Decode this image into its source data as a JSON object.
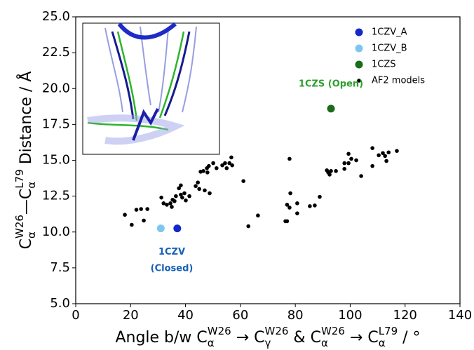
{
  "chart_data": {
    "type": "scatter",
    "x_label": [
      {
        "text": "Angle b/w "
      },
      {
        "text": "C",
        "sub": "α",
        "sup": "W26"
      },
      {
        "text": " → "
      },
      {
        "text": "C",
        "sub": "γ",
        "sup": "W26"
      },
      {
        "text": " & "
      },
      {
        "text": "C",
        "sub": "α",
        "sup": "W26"
      },
      {
        "text": " → "
      },
      {
        "text": "C",
        "sub": "α",
        "sup": "L79"
      },
      {
        "text": " / °"
      }
    ],
    "y_label": [
      {
        "text": "C",
        "sub": "α",
        "sup": "W26"
      },
      {
        "text": "—"
      },
      {
        "text": "C",
        "sub": "α",
        "sup": "L79"
      },
      {
        "text": " Distance / Å"
      }
    ],
    "xlim": [
      0,
      140
    ],
    "xticks": [
      0,
      20,
      40,
      60,
      80,
      100,
      120,
      140
    ],
    "ylim": [
      5,
      25
    ],
    "yticks": [
      {
        "value": 5,
        "label": "5.0"
      },
      {
        "value": 7.5,
        "label": "7.5"
      },
      {
        "value": 10,
        "label": "10.0"
      },
      {
        "value": 12.5,
        "label": "12.5"
      },
      {
        "value": 15,
        "label": "15.0"
      },
      {
        "value": 17.5,
        "label": "17.5"
      },
      {
        "value": 20,
        "label": "20.0"
      },
      {
        "value": 22.5,
        "label": "22.5"
      },
      {
        "value": 25,
        "label": "25.0"
      }
    ],
    "legend": "upper right",
    "series": [
      {
        "name": "1CZV_A",
        "color": "#1428c8",
        "marker_size": 5.5,
        "x": [
          37
        ],
        "values": [
          10.25
        ]
      },
      {
        "name": "1CZV_B",
        "color": "#7fc6ee",
        "marker_size": 5.5,
        "x": [
          31
        ],
        "values": [
          10.25
        ]
      },
      {
        "name": "1CZS",
        "color": "#1a6b1a",
        "marker_size": 5.5,
        "x": [
          93
        ],
        "values": [
          18.6
        ]
      },
      {
        "name": "AF2 models",
        "color": "#000000",
        "marker_size": 2.8,
        "x": [
          17.9,
          20.4,
          22.1,
          23.8,
          24.8,
          26.1,
          31.2,
          32.0,
          33.2,
          34.5,
          35.0,
          35.3,
          36.0,
          36.5,
          37.6,
          38.3,
          38.3,
          38.8,
          39.6,
          40.1,
          41.4,
          43.7,
          44.5,
          45.0,
          45.5,
          46.5,
          47.0,
          47.8,
          48.0,
          48.5,
          48.8,
          50.1,
          51.3,
          53.4,
          54.4,
          55.0,
          56.0,
          56.7,
          57.0,
          61.1,
          62.9,
          66.4,
          76.4,
          77.0,
          77.0,
          77.9,
          77.9,
          78.2,
          80.7,
          80.7,
          85.3,
          87.1,
          88.9,
          91.5,
          92.0,
          92.5,
          93.0,
          94.8,
          97.9,
          97.9,
          99.4,
          99.4,
          100.4,
          102.2,
          104.0,
          108.1,
          108.1,
          110.4,
          111.9,
          112.7,
          113.2,
          114.0,
          117.0
        ],
        "values": [
          11.2,
          10.5,
          11.55,
          11.6,
          10.8,
          11.6,
          12.4,
          12.0,
          11.9,
          12.0,
          11.75,
          12.25,
          12.15,
          12.5,
          13.05,
          13.25,
          12.6,
          12.4,
          12.7,
          12.2,
          12.5,
          13.2,
          13.45,
          13.0,
          14.2,
          14.25,
          12.9,
          14.45,
          14.15,
          14.6,
          12.7,
          14.8,
          14.45,
          14.65,
          14.8,
          14.45,
          14.8,
          15.2,
          14.65,
          13.55,
          10.4,
          11.15,
          10.75,
          10.75,
          11.9,
          15.1,
          11.7,
          12.7,
          12.0,
          11.3,
          11.8,
          11.85,
          12.45,
          14.3,
          14.15,
          14.0,
          14.25,
          14.25,
          14.8,
          14.4,
          15.45,
          14.8,
          15.1,
          15.0,
          13.9,
          14.6,
          15.85,
          15.35,
          15.5,
          15.3,
          14.95,
          15.55,
          15.65
        ]
      }
    ],
    "annotations": [
      {
        "text": "1CZS (Open)",
        "color": "#2e9e2e"
      },
      {
        "text": "1CZV",
        "color": "#1560b8"
      },
      {
        "text": "(Closed)",
        "color": "#1560b8"
      }
    ]
  }
}
